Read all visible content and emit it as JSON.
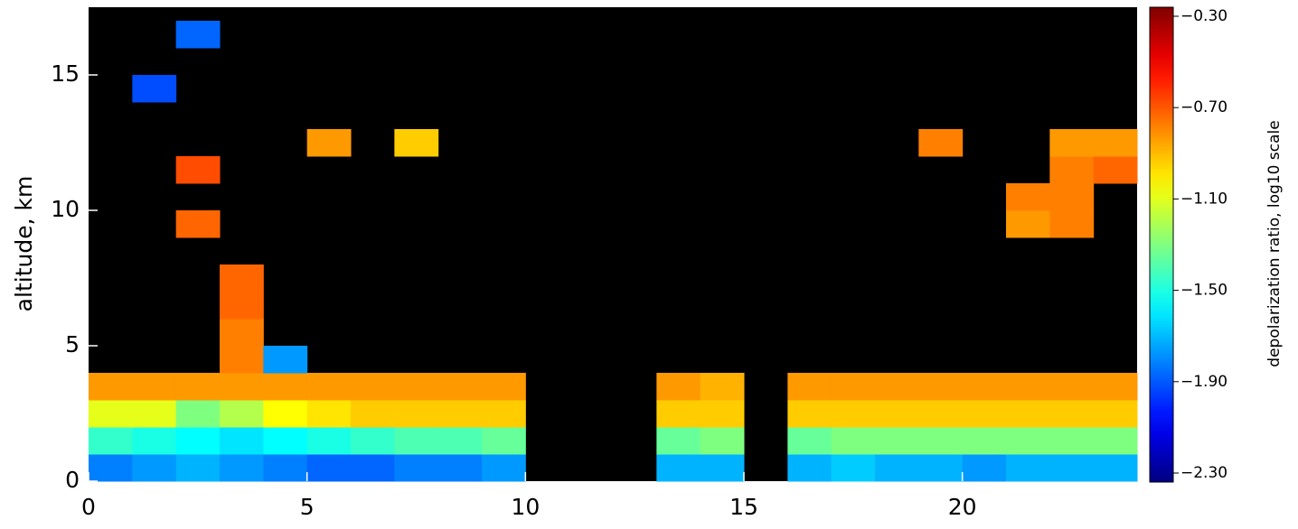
{
  "chart_data": {
    "type": "heatmap",
    "ylabel": "altitude, km",
    "colorbar_label": "depolarization ratio, log10 scale",
    "colormap": "jet",
    "background": "#000000",
    "x": [
      0.5,
      1.5,
      2.5,
      3.5,
      4.5,
      5.5,
      6.5,
      7.5,
      8.5,
      9.5,
      10.5,
      11.5,
      12.5,
      13.5,
      14.5,
      15.5,
      16.5,
      17.5,
      18.5,
      19.5,
      20.5,
      21.5,
      22.5,
      23.5
    ],
    "y": [
      0.5,
      1.5,
      2.5,
      3.5,
      4.5,
      5.5,
      6.5,
      7.5,
      8.5,
      9.5,
      10.5,
      11.5,
      12.5,
      13.5,
      14.5,
      15.5,
      16.5
    ],
    "z": [
      [
        -1.8,
        -1.75,
        -1.7,
        -1.75,
        -1.8,
        -1.85,
        -1.85,
        -1.8,
        -1.8,
        -1.75,
        null,
        null,
        null,
        -1.7,
        -1.7,
        null,
        -1.7,
        -1.65,
        -1.7,
        -1.7,
        -1.75,
        -1.7,
        -1.7,
        -1.7
      ],
      [
        -1.45,
        -1.5,
        -1.55,
        -1.6,
        -1.55,
        -1.5,
        -1.45,
        -1.4,
        -1.4,
        -1.35,
        null,
        null,
        null,
        -1.35,
        -1.3,
        null,
        -1.35,
        -1.3,
        -1.3,
        -1.3,
        -1.3,
        -1.3,
        -1.3,
        -1.3
      ],
      [
        -1.1,
        -1.1,
        -1.3,
        -1.2,
        -1.05,
        -1.0,
        -0.95,
        -0.95,
        -0.95,
        -0.95,
        null,
        null,
        null,
        -0.95,
        -0.95,
        null,
        -0.95,
        -0.95,
        -0.95,
        -0.95,
        -0.95,
        -0.95,
        -0.95,
        -0.95
      ],
      [
        -0.85,
        -0.85,
        -0.85,
        -0.85,
        -0.85,
        -0.85,
        -0.85,
        -0.85,
        -0.85,
        -0.85,
        null,
        null,
        null,
        -0.85,
        -0.9,
        null,
        -0.85,
        -0.85,
        -0.85,
        -0.85,
        -0.85,
        -0.85,
        -0.85,
        -0.85
      ],
      [
        null,
        null,
        null,
        -0.8,
        -1.75,
        null,
        null,
        null,
        null,
        null,
        null,
        null,
        null,
        null,
        null,
        null,
        null,
        null,
        null,
        null,
        null,
        null,
        null,
        null
      ],
      [
        null,
        null,
        null,
        -0.8,
        null,
        null,
        null,
        null,
        null,
        null,
        null,
        null,
        null,
        null,
        null,
        null,
        null,
        null,
        null,
        null,
        null,
        null,
        null,
        null
      ],
      [
        null,
        null,
        null,
        -0.75,
        null,
        null,
        null,
        null,
        null,
        null,
        null,
        null,
        null,
        null,
        null,
        null,
        null,
        null,
        null,
        null,
        null,
        null,
        null,
        null
      ],
      [
        null,
        null,
        null,
        -0.75,
        null,
        null,
        null,
        null,
        null,
        null,
        null,
        null,
        null,
        null,
        null,
        null,
        null,
        null,
        null,
        null,
        null,
        null,
        null,
        null
      ],
      [
        null,
        null,
        null,
        null,
        null,
        null,
        null,
        null,
        null,
        null,
        null,
        null,
        null,
        null,
        null,
        null,
        null,
        null,
        null,
        null,
        null,
        null,
        null,
        null
      ],
      [
        null,
        null,
        -0.75,
        null,
        null,
        null,
        null,
        null,
        null,
        null,
        null,
        null,
        null,
        null,
        null,
        null,
        null,
        null,
        null,
        null,
        null,
        -0.85,
        -0.8,
        null
      ],
      [
        null,
        null,
        null,
        null,
        null,
        null,
        null,
        null,
        null,
        null,
        null,
        null,
        null,
        null,
        null,
        null,
        null,
        null,
        null,
        null,
        null,
        -0.8,
        -0.8,
        null
      ],
      [
        null,
        null,
        -0.7,
        null,
        null,
        null,
        null,
        null,
        null,
        null,
        null,
        null,
        null,
        null,
        null,
        null,
        null,
        null,
        null,
        null,
        null,
        null,
        -0.8,
        -0.75
      ],
      [
        null,
        null,
        null,
        null,
        null,
        -0.85,
        null,
        -0.95,
        null,
        null,
        null,
        null,
        null,
        null,
        null,
        null,
        null,
        null,
        null,
        -0.8,
        null,
        null,
        -0.85,
        -0.85
      ],
      [
        null,
        null,
        null,
        null,
        null,
        null,
        null,
        null,
        null,
        null,
        null,
        null,
        null,
        null,
        null,
        null,
        null,
        null,
        null,
        null,
        null,
        null,
        null,
        null
      ],
      [
        null,
        -1.9,
        null,
        null,
        null,
        null,
        null,
        null,
        null,
        null,
        null,
        null,
        null,
        null,
        null,
        null,
        null,
        null,
        null,
        null,
        null,
        null,
        null,
        null
      ],
      [
        null,
        null,
        null,
        null,
        null,
        null,
        null,
        null,
        null,
        null,
        null,
        null,
        null,
        null,
        null,
        null,
        null,
        null,
        null,
        null,
        null,
        null,
        null,
        null
      ],
      [
        null,
        null,
        -1.85,
        null,
        null,
        null,
        null,
        null,
        null,
        null,
        null,
        null,
        null,
        null,
        null,
        null,
        null,
        null,
        null,
        null,
        null,
        null,
        null,
        null
      ]
    ],
    "xlim": [
      0,
      24
    ],
    "xticks": [
      0,
      5,
      10,
      15,
      20
    ],
    "ylim": [
      0,
      17.5
    ],
    "yticks": [
      0,
      5,
      10,
      15
    ],
    "clim": [
      -2.3,
      -0.3
    ],
    "cticks": [
      {
        "value": -2.3,
        "label": "−2.30"
      },
      {
        "value": -1.9,
        "label": "−1.90"
      },
      {
        "value": -1.5,
        "label": "−1.50"
      },
      {
        "value": -1.1,
        "label": "−1.10"
      },
      {
        "value": -0.7,
        "label": "−0.70"
      },
      {
        "value": -0.3,
        "label": "−0.30"
      }
    ]
  }
}
